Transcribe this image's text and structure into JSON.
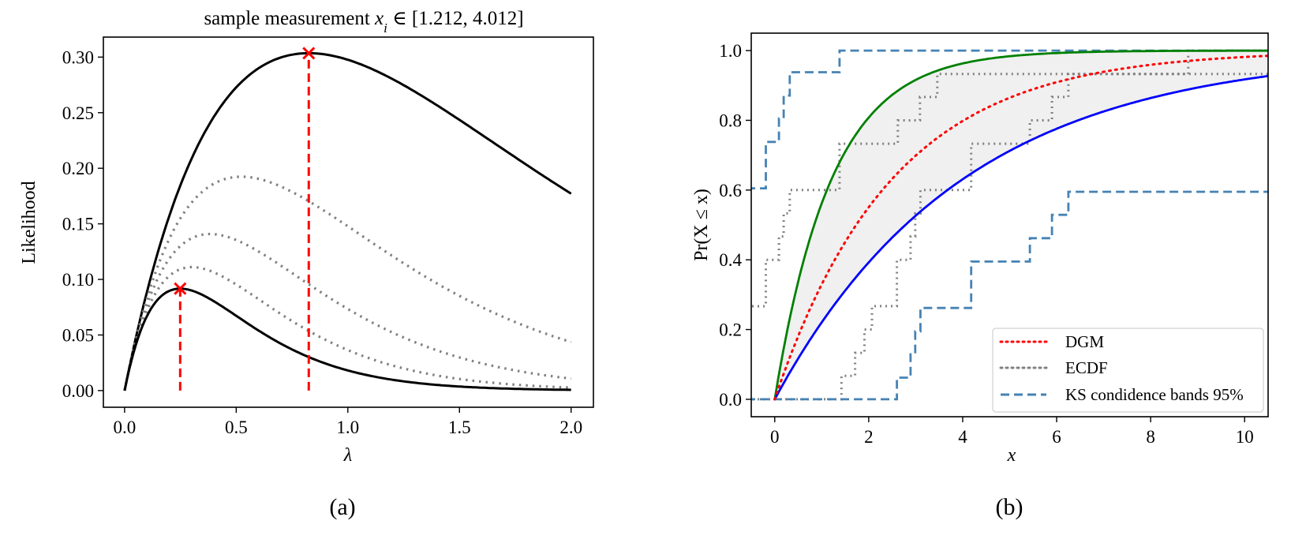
{
  "figure": {
    "captions": [
      "(a)",
      "(b)"
    ]
  },
  "chart_data": [
    {
      "type": "line",
      "title": {
        "prefix": "sample measurement ",
        "var": "x",
        "sub": "i",
        "rest": " ∈ [1.212, 4.012]"
      },
      "xlabel": "λ",
      "ylabel": "Likelihood",
      "xlim": [
        -0.095,
        2.1
      ],
      "ylim": [
        -0.015,
        0.318
      ],
      "xticks": [
        0.0,
        0.5,
        1.0,
        1.5,
        2.0
      ],
      "xtick_labels": [
        "0.0",
        "0.5",
        "1.0",
        "1.5",
        "2.0"
      ],
      "yticks": [
        0.0,
        0.05,
        0.1,
        0.15,
        0.2,
        0.25,
        0.3
      ],
      "ytick_labels": [
        "0.00",
        "0.05",
        "0.10",
        "0.15",
        "0.20",
        "0.25",
        "0.30"
      ],
      "grid": false,
      "curve_function": "likelihood = λ·exp(−λ·x)",
      "lambda_range": [
        0,
        2
      ],
      "series": [
        {
          "x_i": 1.212,
          "style": "solid",
          "color": "#000000"
        },
        {
          "x_i": 1.912,
          "style": "dotted",
          "color": "#808080"
        },
        {
          "x_i": 2.612,
          "style": "dotted",
          "color": "#808080"
        },
        {
          "x_i": 3.312,
          "style": "dotted",
          "color": "#808080"
        },
        {
          "x_i": 4.012,
          "style": "solid",
          "color": "#000000"
        }
      ],
      "maxima": [
        {
          "lambda": 0.825,
          "likelihood": 0.3035,
          "color": "#ff0000",
          "marker": "x"
        },
        {
          "lambda": 0.249,
          "likelihood": 0.0917,
          "color": "#ff0000",
          "marker": "x"
        }
      ]
    },
    {
      "type": "line",
      "xlabel": "x",
      "ylabel": "Pr(X ≤ x)",
      "xlim": [
        -0.5,
        10.5
      ],
      "ylim": [
        -0.05,
        1.05
      ],
      "xticks": [
        0,
        2,
        4,
        6,
        8,
        10
      ],
      "xtick_labels": [
        "0",
        "2",
        "4",
        "6",
        "8",
        "10"
      ],
      "yticks": [
        0.0,
        0.2,
        0.4,
        0.6,
        0.8,
        1.0
      ],
      "ytick_labels": [
        "0.0",
        "0.2",
        "0.4",
        "0.6",
        "0.8",
        "1.0"
      ],
      "grid": false,
      "legend_position": "lower-right",
      "exponential_cdfs": [
        {
          "mean": 1.212,
          "color": "#008000",
          "style": "solid"
        },
        {
          "mean": 4.012,
          "color": "#0000ff",
          "style": "solid"
        }
      ],
      "shaded_region_color": "#f0f0f0",
      "dgm": {
        "name": "DGM",
        "mean": 2.5,
        "color": "#ff0000",
        "style": "dotted"
      },
      "ecdf": {
        "name": "ECDF",
        "color": "#808080",
        "curves": [
          {
            "start": 0.267,
            "steps": [
              [
                -0.19,
                0.4
              ],
              [
                0.09,
                0.467
              ],
              [
                0.19,
                0.533
              ],
              [
                0.32,
                0.6
              ],
              [
                1.38,
                0.733
              ],
              [
                2.62,
                0.8
              ],
              [
                3.09,
                0.867
              ],
              [
                3.46,
                0.933
              ],
              [
                8.8,
                1.0
              ]
            ]
          },
          {
            "start": 0.0,
            "steps": [
              [
                1.42,
                0.067
              ],
              [
                1.71,
                0.133
              ],
              [
                1.91,
                0.2
              ],
              [
                2.07,
                0.267
              ],
              [
                2.6,
                0.4
              ],
              [
                2.89,
                0.467
              ],
              [
                2.99,
                0.533
              ],
              [
                3.1,
                0.6
              ],
              [
                4.18,
                0.733
              ],
              [
                5.43,
                0.8
              ],
              [
                5.9,
                0.867
              ],
              [
                6.25,
                0.933
              ]
            ]
          }
        ]
      },
      "ks_bands": {
        "name": "KS condidence bands 95%",
        "color": "#4682b4",
        "style": "dashed",
        "upper": {
          "start": 0.605,
          "steps": [
            [
              -0.19,
              0.738
            ],
            [
              0.09,
              0.805
            ],
            [
              0.19,
              0.871
            ],
            [
              0.32,
              0.938
            ],
            [
              1.38,
              1.0
            ]
          ]
        },
        "lower": {
          "start": 0.0,
          "steps": [
            [
              2.6,
              0.062
            ],
            [
              2.89,
              0.129
            ],
            [
              2.99,
              0.195
            ],
            [
              3.1,
              0.262
            ],
            [
              4.18,
              0.395
            ],
            [
              5.43,
              0.462
            ],
            [
              5.9,
              0.529
            ],
            [
              6.25,
              0.595
            ]
          ]
        }
      },
      "legend": [
        "DGM",
        "ECDF",
        "KS condidence bands 95%"
      ]
    }
  ]
}
